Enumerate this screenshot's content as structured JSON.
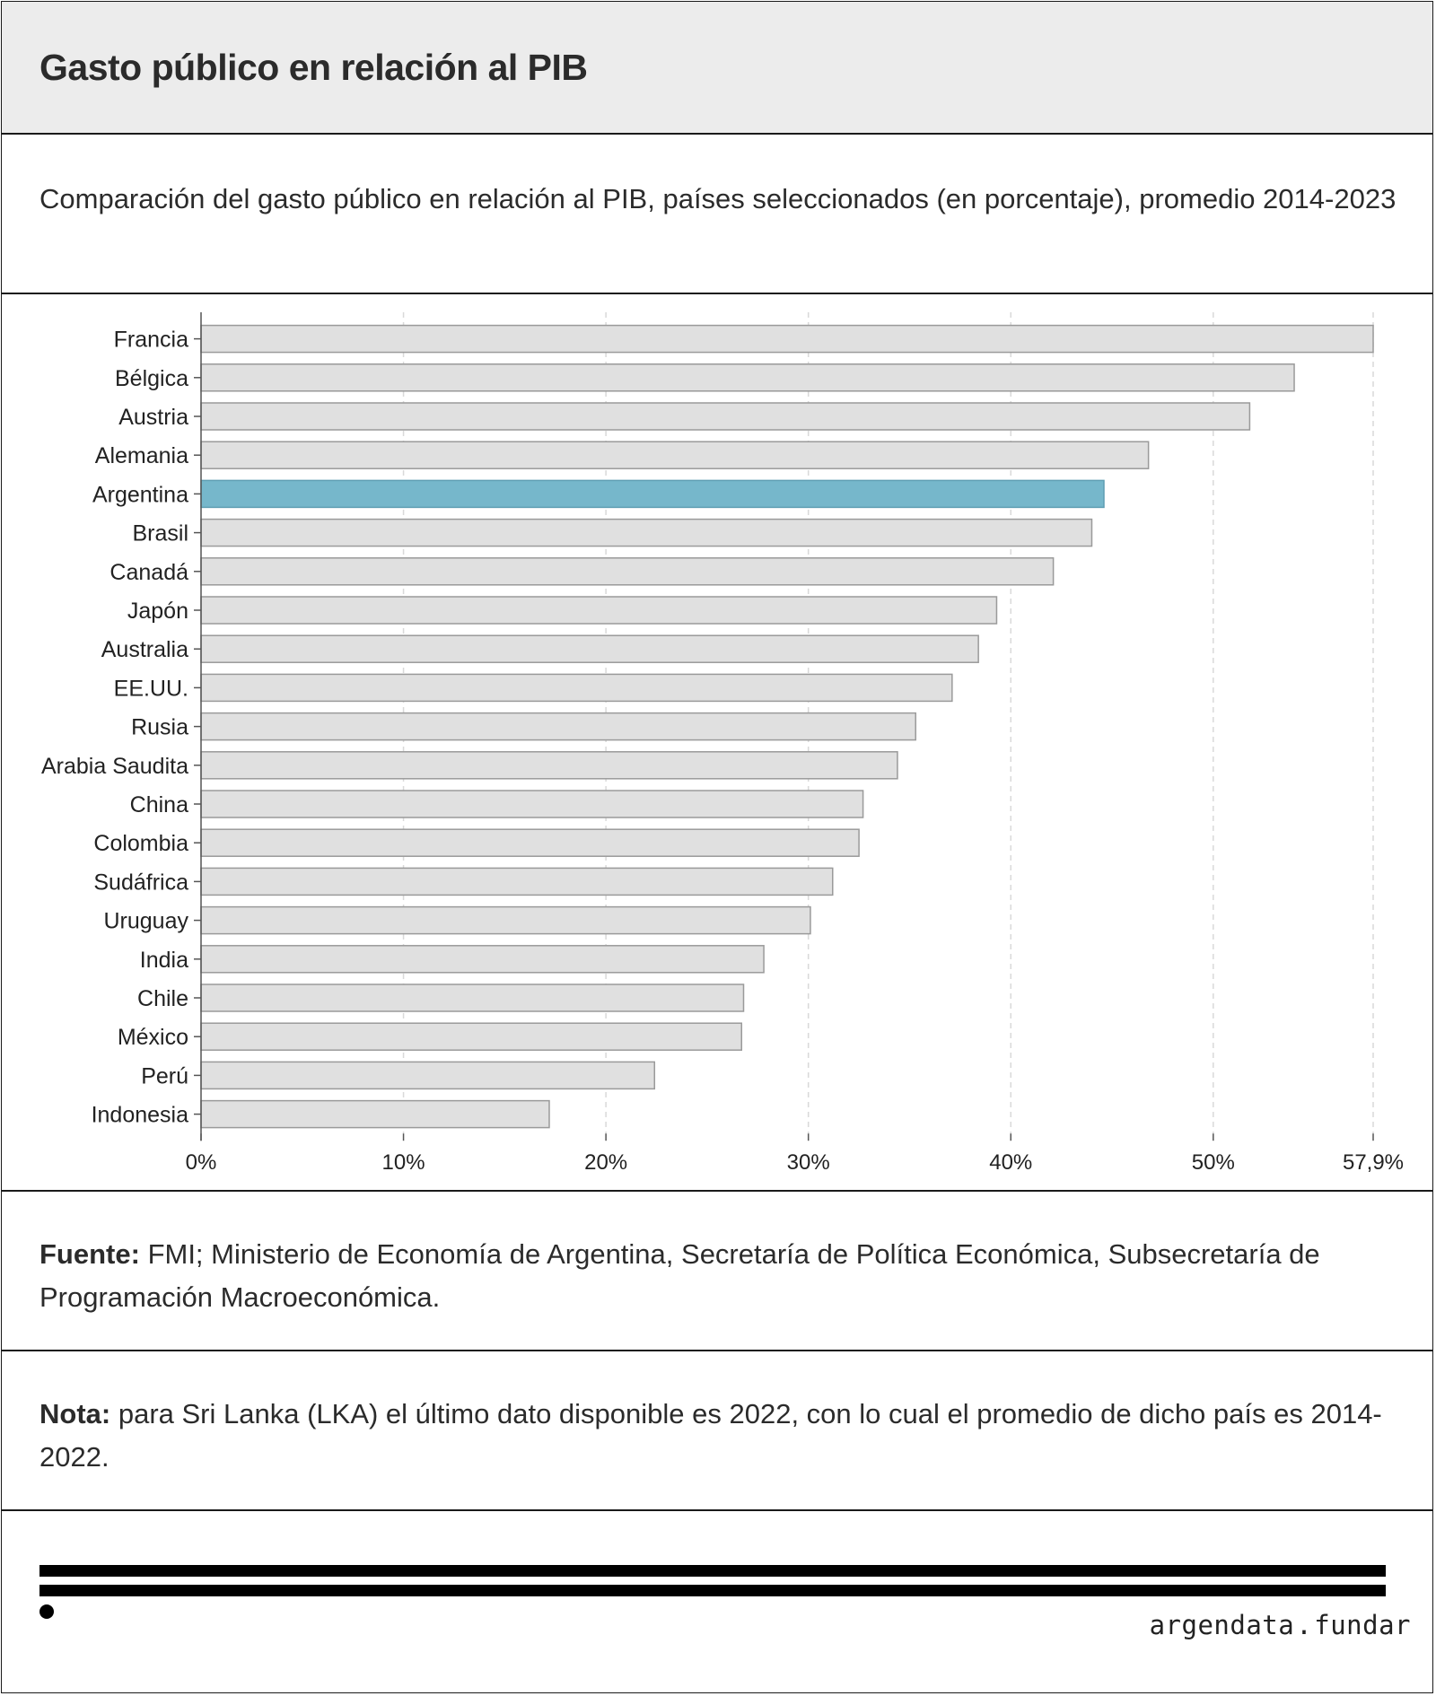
{
  "header": {
    "title": "Gasto público en relación al PIB"
  },
  "subtitle": "Comparación del gasto público en relación al PIB, países seleccionados (en porcentaje), promedio 2014-2023",
  "source": {
    "label": "Fuente:",
    "text": "FMI; Ministerio de Economía de Argentina, Secretaría de Política Económica, Subsecretaría de Programación Macroeconómica."
  },
  "note": {
    "label": "Nota:",
    "text": "para Sri Lanka (LKA) el último dato disponible es 2022, con lo cual el promedio de dicho país es 2014-2022."
  },
  "footer": {
    "brand_left": "argendata",
    "brand_sep": ".",
    "brand_right": "fundar"
  },
  "colors": {
    "bar": "#e0e0e0",
    "bar_stroke": "#9a9a9a",
    "highlight": "#76b7cb",
    "highlight_stroke": "#5f9fb3"
  },
  "chart_data": {
    "type": "bar",
    "orientation": "horizontal",
    "categories": [
      "Francia",
      "Bélgica",
      "Austria",
      "Alemania",
      "Argentina",
      "Brasil",
      "Canadá",
      "Japón",
      "Australia",
      "EE.UU.",
      "Rusia",
      "Arabia Saudita",
      "China",
      "Colombia",
      "Sudáfrica",
      "Uruguay",
      "India",
      "Chile",
      "México",
      "Perú",
      "Indonesia"
    ],
    "values": [
      57.9,
      54.0,
      51.8,
      46.8,
      44.6,
      44.0,
      42.1,
      39.3,
      38.4,
      37.1,
      35.3,
      34.4,
      32.7,
      32.5,
      31.2,
      30.1,
      27.8,
      26.8,
      26.7,
      22.4,
      17.2
    ],
    "highlight": "Argentina",
    "xlim": [
      0,
      57.9
    ],
    "xticks": [
      0,
      10,
      20,
      30,
      40,
      50,
      57.9
    ],
    "xtick_labels": [
      "0%",
      "10%",
      "20%",
      "30%",
      "40%",
      "50%",
      "57,9%"
    ],
    "grid": true,
    "xlabel": "",
    "ylabel": ""
  }
}
